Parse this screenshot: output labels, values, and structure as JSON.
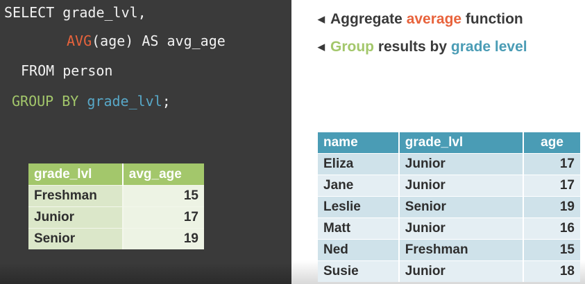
{
  "sql": {
    "line1": {
      "text": "SELECT grade_lvl,"
    },
    "line2": {
      "func": "AVG",
      "rest": "(age) AS avg_age"
    },
    "line3": {
      "text": "FROM person"
    },
    "line4": {
      "kw": "GROUP BY",
      "col": "grade_lvl",
      "end": ";"
    }
  },
  "notes": [
    {
      "before": "Aggregate ",
      "accent": "average",
      "after": " function",
      "accent_color": "#e8633c"
    },
    {
      "accent": "Group",
      "middle": " results by ",
      "accent2": "grade level",
      "accent_color": "#a3c76b",
      "accent2_color": "#4a9cb5"
    }
  ],
  "result_table": {
    "headers": [
      "grade_lvl",
      "avg_age"
    ],
    "rows": [
      [
        "Freshman",
        "15"
      ],
      [
        "Junior",
        "17"
      ],
      [
        "Senior",
        "19"
      ]
    ]
  },
  "person_table": {
    "headers": [
      "name",
      "grade_lvl",
      "age"
    ],
    "rows": [
      [
        "Eliza",
        "Junior",
        "17"
      ],
      [
        "Jane",
        "Junior",
        "17"
      ],
      [
        "Leslie",
        "Senior",
        "19"
      ],
      [
        "Matt",
        "Junior",
        "16"
      ],
      [
        "Ned",
        "Freshman",
        "15"
      ],
      [
        "Susie",
        "Junior",
        "18"
      ]
    ]
  },
  "colors": {
    "code_bg": "#3a3a3a",
    "accent_red": "#e8633c",
    "accent_green": "#a3c76b",
    "accent_blue": "#4a9cb5"
  },
  "icons": {
    "bullet": "left-triangle-icon"
  }
}
